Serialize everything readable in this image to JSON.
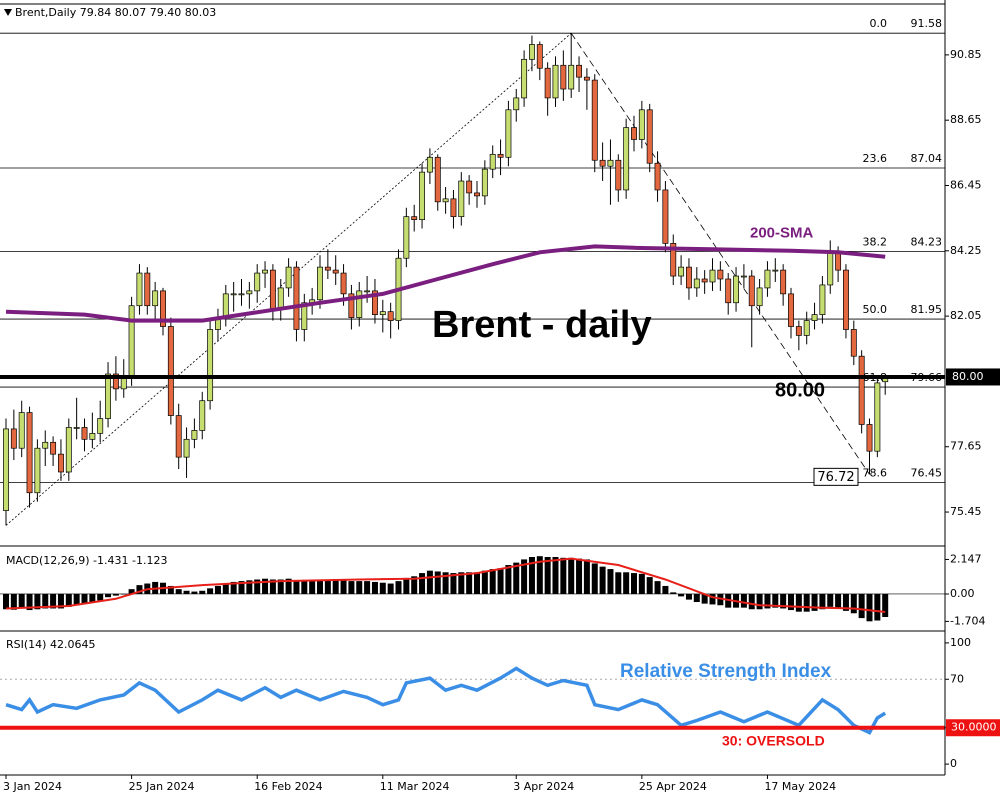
{
  "chart_data": [
    {
      "type": "candlestick",
      "header": {
        "symbol": "Brent,Daily",
        "ohlc": [
          "79.84",
          "80.07",
          "79.40",
          "80.03"
        ]
      },
      "title": "Brent - daily",
      "colors": {
        "up": "#c6dd6f",
        "down": "#e4683f"
      },
      "ylim": [
        74.34,
        92.53
      ],
      "yticks": [
        90.85,
        88.65,
        86.45,
        84.25,
        82.05,
        77.65,
        75.45
      ],
      "candles": [
        [
          75.5,
          78.6,
          75.0,
          78.25
        ],
        [
          78.25,
          78.9,
          77.2,
          77.6
        ],
        [
          77.6,
          79.2,
          77.3,
          78.8
        ],
        [
          78.8,
          79.0,
          75.6,
          76.1
        ],
        [
          76.1,
          77.9,
          75.8,
          77.6
        ],
        [
          77.6,
          78.2,
          77.0,
          77.8
        ],
        [
          77.8,
          78.0,
          77.0,
          77.4
        ],
        [
          77.4,
          77.9,
          76.5,
          76.8
        ],
        [
          76.8,
          78.6,
          76.5,
          78.3
        ],
        [
          78.3,
          79.3,
          77.9,
          78.3
        ],
        [
          78.3,
          78.6,
          77.5,
          77.9
        ],
        [
          77.9,
          78.8,
          77.6,
          78.1
        ],
        [
          78.1,
          79.2,
          77.8,
          78.6
        ],
        [
          78.6,
          80.5,
          78.3,
          80.1
        ],
        [
          80.1,
          80.7,
          79.2,
          79.6
        ],
        [
          79.6,
          80.6,
          79.3,
          80.0
        ],
        [
          80.0,
          82.7,
          79.7,
          82.4
        ],
        [
          82.4,
          83.8,
          82.1,
          83.5
        ],
        [
          83.5,
          83.7,
          82.1,
          82.4
        ],
        [
          82.4,
          83.2,
          81.9,
          82.9
        ],
        [
          82.9,
          83.0,
          81.4,
          81.7
        ],
        [
          81.7,
          82.0,
          78.4,
          78.7
        ],
        [
          78.7,
          79.1,
          76.9,
          77.3
        ],
        [
          77.3,
          78.3,
          76.6,
          77.9
        ],
        [
          77.9,
          78.6,
          77.6,
          78.2
        ],
        [
          78.2,
          79.5,
          77.9,
          79.2
        ],
        [
          79.2,
          81.9,
          78.9,
          81.6
        ],
        [
          81.6,
          82.3,
          81.2,
          82.0
        ],
        [
          82.0,
          83.1,
          81.7,
          82.8
        ],
        [
          82.8,
          83.2,
          82.2,
          82.8
        ],
        [
          82.8,
          83.3,
          82.4,
          82.8
        ],
        [
          82.8,
          83.2,
          82.3,
          82.9
        ],
        [
          82.9,
          83.8,
          82.5,
          83.5
        ],
        [
          83.5,
          83.9,
          83.0,
          83.6
        ],
        [
          83.6,
          83.8,
          81.9,
          82.3
        ],
        [
          82.3,
          83.3,
          81.9,
          83.0
        ],
        [
          83.0,
          84.0,
          82.7,
          83.7
        ],
        [
          83.7,
          83.9,
          81.2,
          81.6
        ],
        [
          81.6,
          82.8,
          81.2,
          82.5
        ],
        [
          82.5,
          83.0,
          82.1,
          82.6
        ],
        [
          82.6,
          84.1,
          82.3,
          83.7
        ],
        [
          83.7,
          84.3,
          83.3,
          83.6
        ],
        [
          83.6,
          84.1,
          83.1,
          83.5
        ],
        [
          83.5,
          83.8,
          82.4,
          82.8
        ],
        [
          82.8,
          83.1,
          81.6,
          82.0
        ],
        [
          82.0,
          83.2,
          81.7,
          82.9
        ],
        [
          82.9,
          83.4,
          82.5,
          82.9
        ],
        [
          82.9,
          83.3,
          81.8,
          82.1
        ],
        [
          82.1,
          82.6,
          81.5,
          82.2
        ],
        [
          82.2,
          82.5,
          81.3,
          81.9
        ],
        [
          81.9,
          84.3,
          81.6,
          84.0
        ],
        [
          84.0,
          85.7,
          83.7,
          85.4
        ],
        [
          85.4,
          85.8,
          84.9,
          85.3
        ],
        [
          85.3,
          87.2,
          85.0,
          86.9
        ],
        [
          86.9,
          87.7,
          86.5,
          87.4
        ],
        [
          87.4,
          87.5,
          85.6,
          85.9
        ],
        [
          85.9,
          86.4,
          85.5,
          86.0
        ],
        [
          86.0,
          86.3,
          85.0,
          85.4
        ],
        [
          85.4,
          86.9,
          85.1,
          86.6
        ],
        [
          86.6,
          86.8,
          85.8,
          86.2
        ],
        [
          86.2,
          86.6,
          85.7,
          86.1
        ],
        [
          86.1,
          87.3,
          85.8,
          87.0
        ],
        [
          87.0,
          87.8,
          86.7,
          87.5
        ],
        [
          87.5,
          88.0,
          86.8,
          87.4
        ],
        [
          87.4,
          89.3,
          87.1,
          89.0
        ],
        [
          89.0,
          89.7,
          88.6,
          89.4
        ],
        [
          89.4,
          91.0,
          89.1,
          90.7
        ],
        [
          90.7,
          91.5,
          90.3,
          91.2
        ],
        [
          91.2,
          91.3,
          90.0,
          90.4
        ],
        [
          90.4,
          90.6,
          88.8,
          89.4
        ],
        [
          89.4,
          90.8,
          89.1,
          90.5
        ],
        [
          90.5,
          91.0,
          89.3,
          89.7
        ],
        [
          89.7,
          91.58,
          89.4,
          90.5
        ],
        [
          90.5,
          90.8,
          89.6,
          90.1
        ],
        [
          90.1,
          90.4,
          89.0,
          90.0
        ],
        [
          90.0,
          90.2,
          86.9,
          87.3
        ],
        [
          87.3,
          87.9,
          86.6,
          87.1
        ],
        [
          87.1,
          88.0,
          85.8,
          87.3
        ],
        [
          87.3,
          87.5,
          85.9,
          86.3
        ],
        [
          86.3,
          88.7,
          86.0,
          88.4
        ],
        [
          88.4,
          88.8,
          87.6,
          88.0
        ],
        [
          88.0,
          89.3,
          87.7,
          89.0
        ],
        [
          89.0,
          89.2,
          86.9,
          87.2
        ],
        [
          87.2,
          87.6,
          85.9,
          86.3
        ],
        [
          86.3,
          86.6,
          84.2,
          84.5
        ],
        [
          84.5,
          84.8,
          83.1,
          83.4
        ],
        [
          83.4,
          84.1,
          83.1,
          83.7
        ],
        [
          83.7,
          84.0,
          82.6,
          83.0
        ],
        [
          83.0,
          83.7,
          82.7,
          83.3
        ],
        [
          83.3,
          83.6,
          82.8,
          83.2
        ],
        [
          83.2,
          84.0,
          82.9,
          83.6
        ],
        [
          83.6,
          83.9,
          82.9,
          83.3
        ],
        [
          83.3,
          83.5,
          82.1,
          82.5
        ],
        [
          82.5,
          83.7,
          82.2,
          83.4
        ],
        [
          83.4,
          83.8,
          83.0,
          83.4
        ],
        [
          83.4,
          83.6,
          81.0,
          82.4
        ],
        [
          82.4,
          83.3,
          82.1,
          83.0
        ],
        [
          83.0,
          83.9,
          82.7,
          83.6
        ],
        [
          83.6,
          84.0,
          83.2,
          83.6
        ],
        [
          83.6,
          83.8,
          82.4,
          82.8
        ],
        [
          82.8,
          83.0,
          81.3,
          81.7
        ],
        [
          81.7,
          81.9,
          80.9,
          81.4
        ],
        [
          81.4,
          82.2,
          81.1,
          81.9
        ],
        [
          81.9,
          82.5,
          81.6,
          82.1
        ],
        [
          82.1,
          83.4,
          81.8,
          83.1
        ],
        [
          83.1,
          84.6,
          82.8,
          84.2
        ],
        [
          84.2,
          84.4,
          83.2,
          83.6
        ],
        [
          83.6,
          83.8,
          81.3,
          81.6
        ],
        [
          81.6,
          81.9,
          80.4,
          80.7
        ],
        [
          80.7,
          80.9,
          78.1,
          78.4
        ],
        [
          78.4,
          78.6,
          76.72,
          77.5
        ],
        [
          77.5,
          80.0,
          77.3,
          79.8
        ],
        [
          79.84,
          80.07,
          79.4,
          80.03
        ]
      ],
      "sma": {
        "name": "200-SMA",
        "color": "#7a1f7f",
        "x": [
          0,
          10,
          16,
          25,
          30,
          40,
          48,
          55,
          62,
          68,
          75,
          80,
          90,
          100,
          106,
          112
        ],
        "values": [
          82.2,
          82.1,
          81.9,
          81.9,
          82.1,
          82.5,
          82.8,
          83.3,
          83.8,
          84.2,
          84.4,
          84.35,
          84.3,
          84.25,
          84.2,
          84.05
        ]
      },
      "fib_levels": [
        {
          "level": "0.0",
          "price": 91.58
        },
        {
          "level": "23.6",
          "price": 87.04
        },
        {
          "level": "38.2",
          "price": 84.23
        },
        {
          "level": "50.0",
          "price": 81.95
        },
        {
          "level": "61.8",
          "price": 79.66
        },
        {
          "level": "78.6",
          "price": 76.45
        }
      ],
      "key_level": {
        "value": 80,
        "label": "80.00"
      }
    },
    {
      "type": "macd",
      "name": "MACD(12,26,9)",
      "ylim": [
        -2.24,
        2.86
      ],
      "yticks": [
        2.147,
        {
          "value": 0,
          "label": "0.00"
        },
        -1.704
      ],
      "histogram": {
        "color": "#000000",
        "values": [
          -0.95,
          -0.98,
          -0.9,
          -1.0,
          -0.95,
          -0.9,
          -0.9,
          -0.9,
          -0.8,
          -0.7,
          -0.6,
          -0.5,
          -0.4,
          -0.2,
          -0.1,
          0.0,
          0.3,
          0.55,
          0.65,
          0.75,
          0.7,
          0.5,
          0.3,
          0.2,
          0.15,
          0.2,
          0.35,
          0.5,
          0.65,
          0.75,
          0.8,
          0.85,
          0.9,
          0.95,
          0.9,
          0.9,
          0.95,
          0.8,
          0.8,
          0.8,
          0.85,
          0.9,
          0.9,
          0.85,
          0.8,
          0.8,
          0.8,
          0.75,
          0.7,
          0.65,
          0.8,
          1.0,
          1.1,
          1.3,
          1.45,
          1.4,
          1.35,
          1.3,
          1.35,
          1.35,
          1.35,
          1.45,
          1.55,
          1.6,
          1.8,
          1.95,
          2.15,
          2.3,
          2.35,
          2.3,
          2.3,
          2.25,
          2.25,
          2.2,
          2.15,
          1.9,
          1.7,
          1.55,
          1.35,
          1.35,
          1.3,
          1.25,
          1.05,
          0.8,
          0.5,
          0.1,
          -0.15,
          -0.35,
          -0.5,
          -0.6,
          -0.65,
          -0.7,
          -0.85,
          -0.85,
          -0.85,
          -0.95,
          -0.95,
          -0.9,
          -0.85,
          -0.9,
          -1.0,
          -1.1,
          -1.1,
          -1.05,
          -0.95,
          -0.8,
          -0.85,
          -1.05,
          -1.2,
          -1.5,
          -1.7,
          -1.65,
          -1.431
        ]
      },
      "signal": {
        "color": "#e8201a",
        "x": [
          0,
          8,
          14,
          18,
          25,
          35,
          45,
          52,
          60,
          68,
          72,
          78,
          84,
          90,
          96,
          104,
          108,
          112
        ],
        "values": [
          -0.9,
          -0.75,
          -0.3,
          0.3,
          0.55,
          0.8,
          0.9,
          0.95,
          1.3,
          2.0,
          2.2,
          1.8,
          0.9,
          -0.2,
          -0.7,
          -0.85,
          -0.9,
          -1.123
        ]
      }
    },
    {
      "type": "rsi",
      "name": "RSI(14)",
      "annotation": "Relative Strength Index",
      "ylim": [
        -9,
        109
      ],
      "yticks": [
        100,
        70,
        30,
        0
      ],
      "line": {
        "color": "#3a8ee6",
        "x": [
          0,
          2,
          3,
          4,
          6,
          9,
          12,
          15,
          17,
          19,
          22,
          25,
          27,
          30,
          33,
          35,
          37,
          40,
          43,
          46,
          48,
          50,
          51,
          54,
          56,
          58,
          60,
          63,
          65,
          67,
          69,
          71,
          74,
          75,
          78,
          81,
          83,
          86,
          88,
          91,
          94,
          97,
          101,
          104,
          106,
          108,
          110,
          111,
          112
        ],
        "values": [
          49,
          45,
          53,
          43,
          49,
          46,
          53,
          57,
          67,
          61,
          43,
          53,
          61,
          53,
          63,
          55,
          61,
          53,
          60,
          55,
          49,
          53,
          67,
          71,
          61,
          65,
          61,
          71,
          79,
          71,
          65,
          69,
          65,
          49,
          45,
          53,
          49,
          32,
          36,
          43,
          35,
          43,
          32,
          53,
          45,
          32,
          26,
          38,
          42.0645
        ]
      },
      "oversold": {
        "value": 30,
        "label": "30.0000",
        "text": "30: OVERSOLD",
        "color": "#ee1111"
      },
      "categories": [
        "3 Jan 2024",
        null,
        null,
        null,
        null,
        null,
        null,
        null,
        null,
        null,
        null,
        null,
        null,
        null,
        null,
        null,
        "25 Jan 2024",
        null,
        null,
        null,
        null,
        null,
        null,
        null,
        null,
        null,
        null,
        null,
        null,
        null,
        null,
        null,
        "16 Feb 2024",
        null,
        null,
        null,
        null,
        null,
        null,
        null,
        null,
        null,
        null,
        null,
        null,
        null,
        null,
        null,
        "11 Mar 2024",
        null,
        null,
        null,
        null,
        null,
        null,
        null,
        null,
        null,
        null,
        null,
        null,
        null,
        null,
        null,
        null,
        "3 Apr 2024",
        null,
        null,
        null,
        null,
        null,
        null,
        null,
        null,
        null,
        null,
        null,
        null,
        null,
        null,
        null,
        "25 Apr 2024",
        null,
        null,
        null,
        null,
        null,
        null,
        null,
        null,
        null,
        null,
        null,
        null,
        null,
        null,
        null,
        "17 May 2024",
        null,
        null,
        null,
        null,
        null,
        null,
        null,
        null,
        null,
        null,
        null,
        null,
        null,
        null,
        null
      ]
    }
  ]
}
